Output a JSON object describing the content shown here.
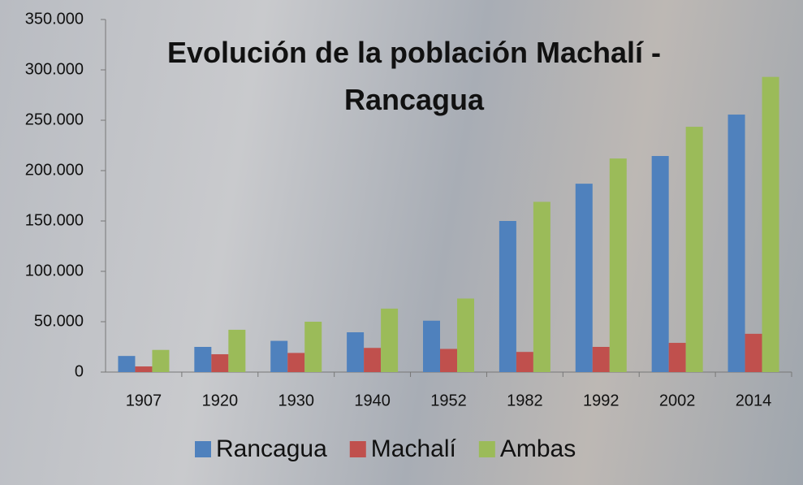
{
  "chart_data": {
    "type": "bar",
    "title": "Evolución de la población Machalí - Rancagua",
    "categories": [
      "1907",
      "1920",
      "1930",
      "1940",
      "1952",
      "1982",
      "1992",
      "2002",
      "2014"
    ],
    "series": [
      {
        "name": "Rancagua",
        "color": "#4f81bd",
        "values": [
          16000,
          25000,
          31000,
          39500,
          51000,
          150000,
          187000,
          214500,
          255600
        ]
      },
      {
        "name": "Machalí",
        "color": "#c0504d",
        "values": [
          5600,
          17700,
          19000,
          24000,
          23000,
          20000,
          25000,
          29000,
          38000
        ]
      },
      {
        "name": "Ambas",
        "color": "#9bbb59",
        "values": [
          22000,
          42000,
          50000,
          63000,
          73000,
          169000,
          212000,
          243500,
          293000
        ]
      }
    ],
    "ylim": [
      0,
      350000
    ],
    "yticks": [
      0,
      {
        "value": 50000,
        "label": "50.000"
      },
      {
        "value": 100000,
        "label": "100.000"
      },
      {
        "value": 150000,
        "label": "150.000"
      },
      {
        "value": 200000,
        "label": "200.000"
      },
      {
        "value": 250000,
        "label": "250.000"
      },
      {
        "value": 300000,
        "label": "300.000"
      },
      {
        "value": 350000,
        "label": "350.000"
      }
    ],
    "grid": false
  }
}
